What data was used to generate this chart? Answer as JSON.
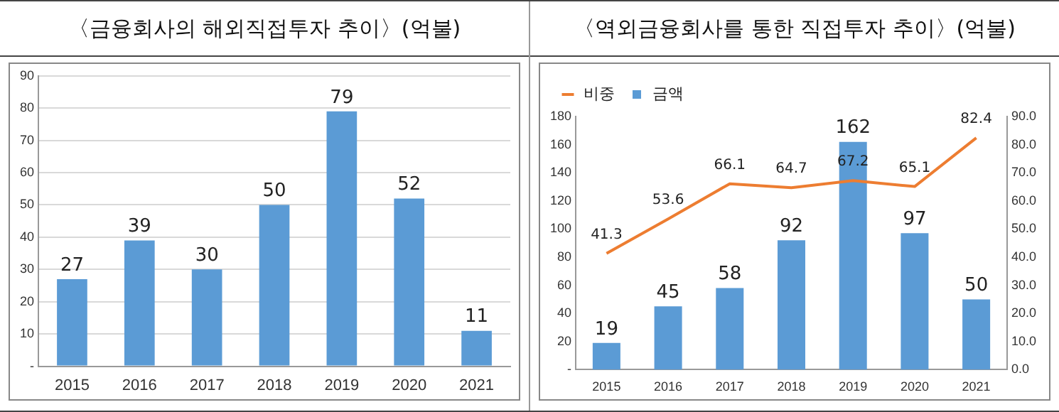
{
  "chart_data": [
    {
      "type": "bar",
      "title": "〈금융회사의 해외직접투자 추이〉(억불)",
      "categories": [
        "2015",
        "2016",
        "2017",
        "2018",
        "2019",
        "2020",
        "2021"
      ],
      "series": [
        {
          "color": "#5b9bd5",
          "values": [
            27,
            39,
            30,
            50,
            79,
            52,
            11
          ]
        }
      ],
      "ylim": [
        0,
        90
      ],
      "yticks": [
        {
          "value": 0,
          "label": "-"
        },
        10,
        20,
        30,
        40,
        50,
        60,
        70,
        80,
        90
      ],
      "grid": "y",
      "legend": false,
      "data_labels": true
    },
    {
      "type": "bar",
      "title": "〈역외금융회사를 통한 직접투자 추이〉(억불)",
      "categories": [
        "2015",
        "2016",
        "2017",
        "2018",
        "2019",
        "2020",
        "2021"
      ],
      "series": [
        {
          "name": "금액",
          "color": "#5b9bd5",
          "values": [
            19,
            45,
            58,
            92,
            162,
            97,
            50
          ]
        },
        {
          "name": "비중",
          "type": "line",
          "axis": "y2",
          "color": "#ed7d31",
          "values": [
            41.3,
            53.6,
            66.1,
            64.7,
            67.2,
            65.1,
            82.4
          ]
        }
      ],
      "ylim": [
        0,
        180
      ],
      "yticks": [
        {
          "value": 0,
          "label": "-"
        },
        20,
        40,
        60,
        80,
        100,
        120,
        140,
        160,
        180
      ],
      "y2lim": [
        0,
        90
      ],
      "y2ticks": [
        {
          "value": 0,
          "label": "0.0"
        },
        {
          "value": 10,
          "label": "10.0"
        },
        {
          "value": 20,
          "label": "20.0"
        },
        {
          "value": 30,
          "label": "30.0"
        },
        {
          "value": 40,
          "label": "40.0"
        },
        {
          "value": 50,
          "label": "50.0"
        },
        {
          "value": 60,
          "label": "60.0"
        },
        {
          "value": 70,
          "label": "70.0"
        },
        {
          "value": 80,
          "label": "80.0"
        },
        {
          "value": 90,
          "label": "90.0"
        }
      ],
      "grid": false,
      "legend": "top left",
      "marker": "none",
      "data_labels": true
    }
  ]
}
